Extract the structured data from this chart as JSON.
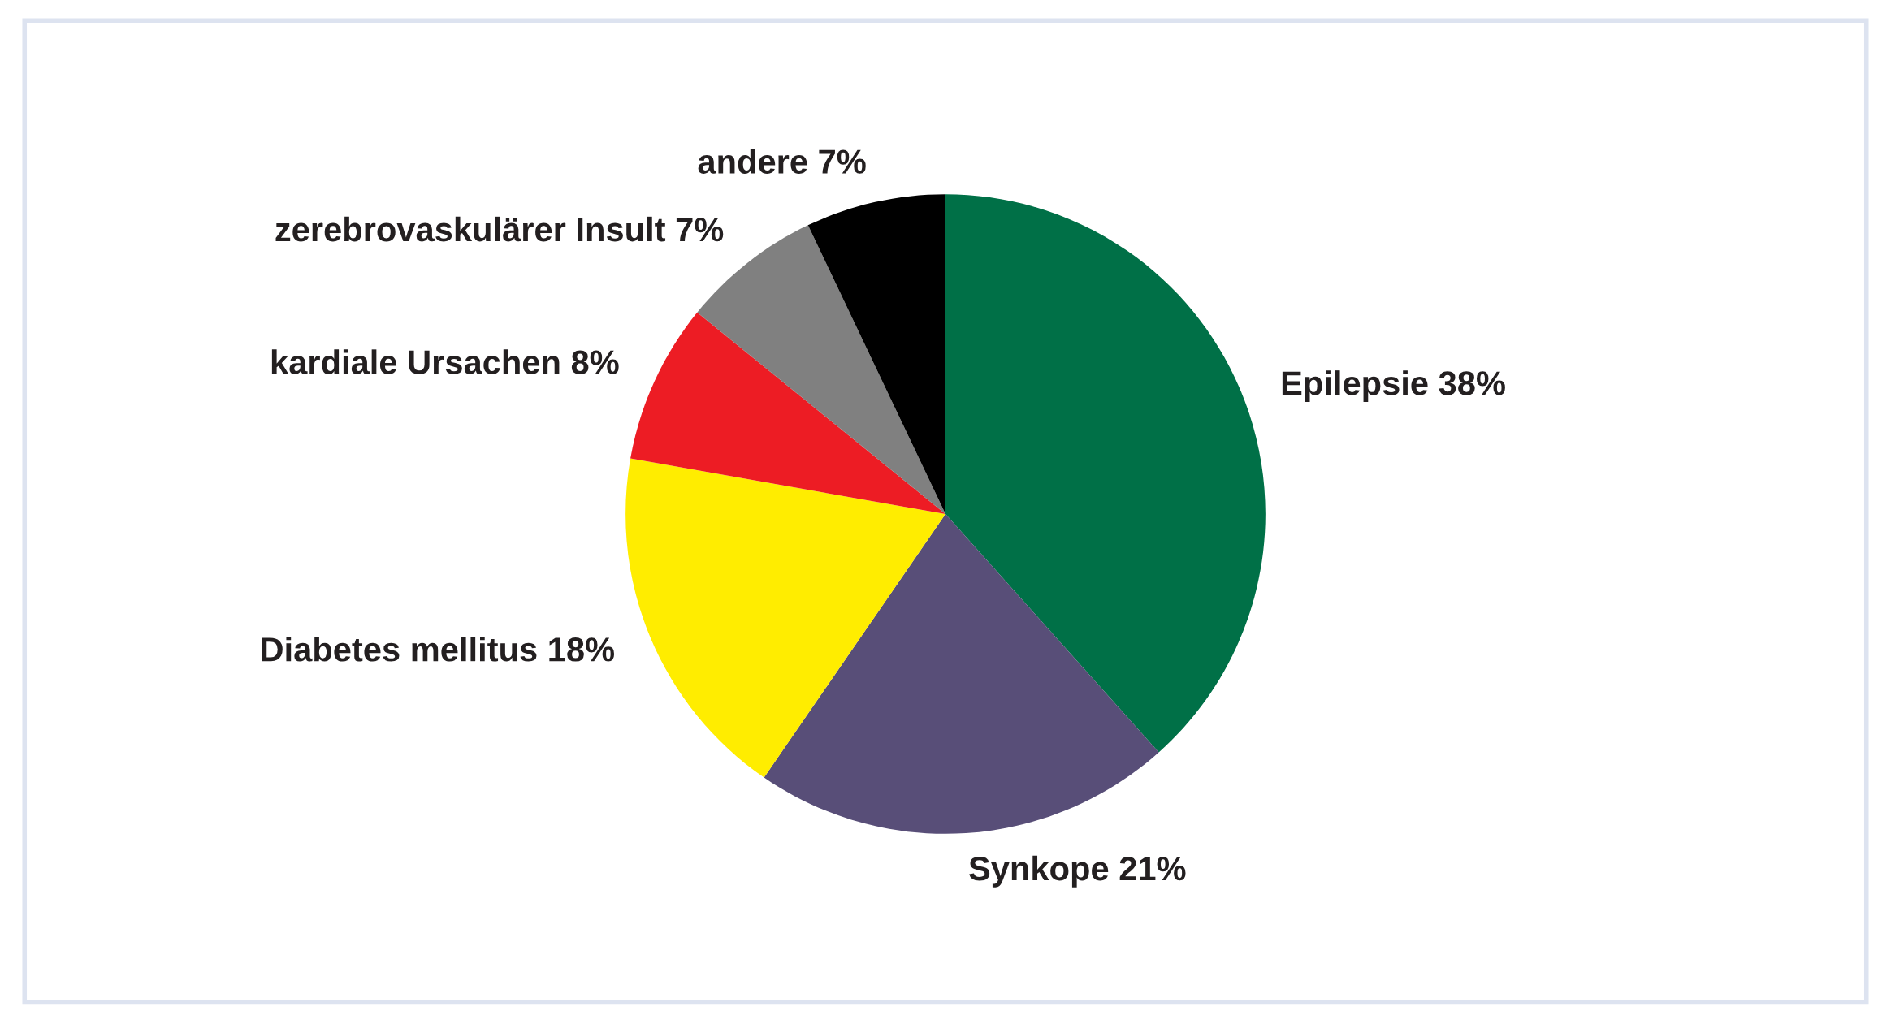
{
  "chart_data": {
    "type": "pie",
    "categories": [
      "Epilepsie",
      "Synkope",
      "Diabetes mellitus",
      "kardiale Ursachen",
      "zerebrovaskulärer Insult",
      "andere"
    ],
    "values": [
      38,
      21,
      18,
      8,
      7,
      7
    ],
    "value_labels": [
      "38%",
      "21%",
      "18%",
      "8%",
      "7%",
      "7%"
    ],
    "colors": [
      "#007047",
      "#584e78",
      "#ffed00",
      "#ed1c24",
      "#808080",
      "#000000"
    ],
    "legend": false
  }
}
